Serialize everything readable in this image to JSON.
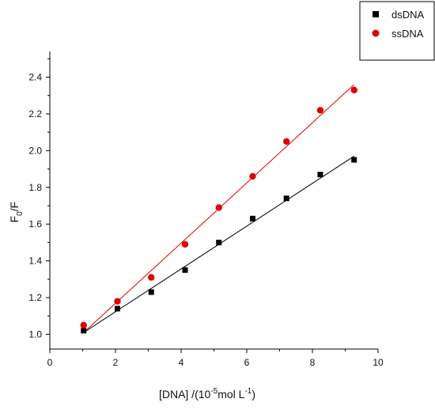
{
  "chart_data": {
    "type": "scatter",
    "xlabel": {
      "main": "[DNA] /(10",
      "sup": "-5",
      "mid": "mol L",
      "sup2": "-1",
      "end": ")"
    },
    "ylabel": {
      "main": "F",
      "sub": "0",
      "end": "/F"
    },
    "xlim": [
      0,
      10
    ],
    "ylim": [
      0.92,
      2.54
    ],
    "xticks": [
      0,
      2,
      4,
      6,
      8,
      10
    ],
    "yticks": [
      1.0,
      1.2,
      1.4,
      1.6,
      1.8,
      2.0,
      2.2,
      2.4
    ],
    "xtick_labels": [
      "0",
      "2",
      "4",
      "6",
      "8",
      "10"
    ],
    "ytick_labels": [
      "1.0",
      "1.2",
      "1.4",
      "1.6",
      "1.8",
      "2.0",
      "2.2",
      "2.4"
    ],
    "grid": false,
    "legend_position": "top-right",
    "series": [
      {
        "name": "dsDNA",
        "marker": "square",
        "color": "#000000",
        "x": [
          1.03,
          2.06,
          3.09,
          4.12,
          5.15,
          6.18,
          7.21,
          8.24,
          9.27
        ],
        "y": [
          1.02,
          1.14,
          1.23,
          1.35,
          1.5,
          1.63,
          1.74,
          1.87,
          1.95
        ],
        "fit": {
          "x": [
            1.03,
            9.27
          ],
          "y": [
            1.01,
            1.97
          ]
        }
      },
      {
        "name": "ssDNA",
        "marker": "circle",
        "color": "#e00000",
        "x": [
          1.03,
          2.06,
          3.09,
          4.12,
          5.15,
          6.18,
          7.21,
          8.24,
          9.27
        ],
        "y": [
          1.05,
          1.18,
          1.31,
          1.49,
          1.69,
          1.86,
          2.05,
          2.22,
          2.33
        ],
        "fit": {
          "x": [
            1.03,
            9.27
          ],
          "y": [
            1.01,
            2.36
          ]
        }
      }
    ]
  }
}
